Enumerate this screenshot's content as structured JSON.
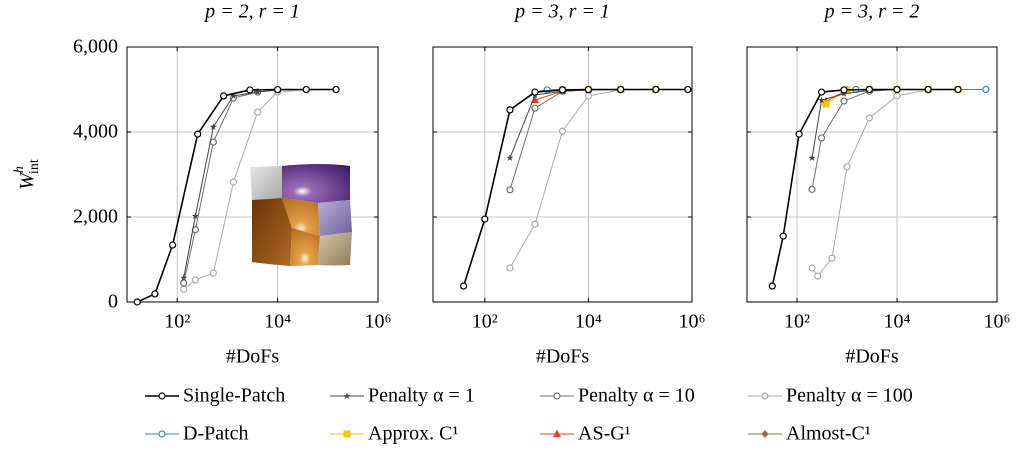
{
  "legend": {
    "entries": [
      {
        "name": "Single-Patch",
        "color": "#000000",
        "marker": "circle"
      },
      {
        "name": "Penalty α = 1",
        "color": "#444444",
        "marker": "star"
      },
      {
        "name": "Penalty α = 10",
        "color": "#6e6e6e",
        "marker": "circle"
      },
      {
        "name": "Penalty α = 100",
        "color": "#ababab",
        "marker": "circle"
      },
      {
        "name": "D-Patch",
        "color": "#2b8cbe",
        "marker": "circle"
      },
      {
        "name": "Approx. C¹",
        "color": "#f7c600",
        "marker": "square"
      },
      {
        "name": "AS-G¹",
        "color": "#e8401c",
        "marker": "triangle"
      },
      {
        "name": "Almost-C¹",
        "color": "#9c6b3c",
        "marker": "diamond"
      }
    ]
  },
  "chart_data": [
    {
      "type": "line",
      "title": "p = 2, r = 1",
      "x_label": "#DoFs",
      "y_label": {
        "text": "W",
        "sup": "h",
        "sub": "int"
      },
      "log_x": true,
      "grid": true,
      "ytick_labels": true,
      "xlim": [
        10,
        1000000
      ],
      "ylim": [
        0,
        6000
      ],
      "xticks": [
        {
          "value": 100,
          "label": "10²"
        },
        {
          "value": 10000,
          "label": "10⁴"
        },
        {
          "value": 1000000,
          "label": "10⁶"
        }
      ],
      "yticks": [
        0,
        {
          "value": 2000,
          "label": "2,000"
        },
        {
          "value": 4000,
          "label": "4,000"
        },
        {
          "value": 6000,
          "label": "6,000"
        }
      ],
      "series": [
        {
          "name": "Single-Patch",
          "x": [
            16,
            36,
            81,
            256,
            841,
            2809,
            10000,
            37249,
            145924
          ],
          "values": [
            0,
            190,
            1340,
            3950,
            4850,
            4990,
            5000,
            5000,
            5000
          ]
        },
        {
          "name": "Penalty α = 1",
          "x": [
            135,
            230,
            525,
            1320,
            4000,
            10000,
            37249,
            145924
          ],
          "values": [
            565,
            2020,
            4120,
            4850,
            4940,
            4990,
            5000,
            5000
          ]
        },
        {
          "name": "Penalty α = 10",
          "x": [
            135,
            230,
            525,
            1320,
            4000,
            10000,
            37249,
            145924
          ],
          "values": [
            447,
            1700,
            3760,
            4800,
            4940,
            4990,
            5000,
            5000
          ]
        },
        {
          "name": "Penalty α = 100",
          "x": [
            135,
            230,
            525,
            1320,
            4000,
            10000,
            37249,
            145924
          ],
          "values": [
            300,
            520,
            680,
            2820,
            4470,
            4940,
            4990,
            5000
          ]
        }
      ]
    },
    {
      "type": "line",
      "title": "p = 3, r = 1",
      "x_label": "#DoFs",
      "log_x": true,
      "grid": true,
      "ytick_labels": false,
      "xlim": [
        10,
        1000000
      ],
      "ylim": [
        0,
        6000
      ],
      "xticks": [
        {
          "value": 100,
          "label": "10²"
        },
        {
          "value": 10000,
          "label": "10⁴"
        },
        {
          "value": 1000000,
          "label": "10⁶"
        }
      ],
      "yticks": [
        0,
        2000,
        4000,
        6000
      ],
      "series": [
        {
          "name": "Single-Patch",
          "x": [
            39,
            100,
            306,
            930,
            3160,
            10000,
            42000,
            200000,
            830000
          ],
          "values": [
            376,
            1950,
            4520,
            4940,
            4990,
            5000,
            5000,
            5000,
            5000
          ]
        },
        {
          "name": "Penalty α = 1",
          "x": [
            306,
            930,
            3160,
            10000,
            42000,
            200000,
            830000
          ],
          "values": [
            3390,
            4870,
            4960,
            4990,
            5000,
            5000,
            5000
          ]
        },
        {
          "name": "Penalty α = 10",
          "x": [
            306,
            930,
            3160,
            10000,
            42000,
            200000,
            830000
          ],
          "values": [
            2640,
            4560,
            4960,
            4990,
            5000,
            5000,
            5000
          ]
        },
        {
          "name": "Penalty α = 100",
          "x": [
            306,
            930,
            3160,
            10000,
            42000,
            200000,
            830000
          ],
          "values": [
            800,
            1830,
            4020,
            4850,
            4990,
            5000,
            5000
          ]
        },
        {
          "name": "D-Patch",
          "x": [
            930,
            1600,
            3160,
            10000,
            42000,
            200000,
            830000
          ],
          "values": [
            4940,
            4990,
            5000,
            5000,
            5000,
            5000,
            5000
          ]
        },
        {
          "name": "Approx. C¹",
          "x": [
            3160,
            10000,
            42000,
            200000
          ],
          "values": [
            4990,
            5000,
            5000,
            5000
          ]
        },
        {
          "name": "AS-G¹",
          "x": [
            930,
            3160,
            10000,
            42000,
            200000
          ],
          "values": [
            4750,
            4960,
            5000,
            5000,
            5000
          ]
        },
        {
          "name": "Almost-C¹",
          "x": [
            1600,
            3160,
            10000,
            42000,
            200000
          ],
          "values": [
            4980,
            5000,
            5000,
            5000,
            5000
          ]
        }
      ]
    },
    {
      "type": "line",
      "title": "p = 3, r = 2",
      "x_label": "#DoFs",
      "log_x": true,
      "grid": true,
      "ytick_labels": false,
      "xlim": [
        10,
        1000000
      ],
      "ylim": [
        0,
        6000
      ],
      "xticks": [
        {
          "value": 100,
          "label": "10²"
        },
        {
          "value": 10000,
          "label": "10⁴"
        },
        {
          "value": 1000000,
          "label": "10⁶"
        }
      ],
      "yticks": [
        0,
        2000,
        4000,
        6000
      ],
      "series": [
        {
          "name": "Single-Patch",
          "x": [
            32,
            53,
            110,
            310,
            870,
            2800,
            10000,
            42000,
            166000
          ],
          "values": [
            376,
            1550,
            3950,
            4940,
            4990,
            5000,
            5000,
            5000,
            5000
          ]
        },
        {
          "name": "Penalty α = 1",
          "x": [
            200,
            310,
            870,
            2800,
            10000,
            42000,
            166000
          ],
          "values": [
            3390,
            4750,
            4900,
            4980,
            5000,
            5000,
            5000
          ]
        },
        {
          "name": "Penalty α = 10",
          "x": [
            200,
            310,
            870,
            2800,
            10000,
            42000,
            166000
          ],
          "values": [
            2650,
            3860,
            4730,
            4960,
            5000,
            5000,
            5000
          ]
        },
        {
          "name": "Penalty α = 100",
          "x": [
            200,
            260,
            500,
            1000,
            2800,
            10000,
            42000,
            166000
          ],
          "values": [
            800,
            610,
            1030,
            3180,
            4330,
            4850,
            4990,
            5000
          ]
        },
        {
          "name": "D-Patch",
          "x": [
            870,
            1500,
            2800,
            10000,
            42000,
            166000,
            600000
          ],
          "values": [
            4990,
            5000,
            5000,
            5000,
            5000,
            5000,
            5000
          ]
        },
        {
          "name": "Approx. C¹",
          "x": [
            380,
            1000,
            2800,
            10000,
            42000,
            166000
          ],
          "values": [
            4660,
            4980,
            5000,
            5000,
            5000,
            5000
          ]
        },
        {
          "name": "AS-G¹",
          "x": [
            380,
            1000,
            2800,
            10000
          ],
          "values": [
            4720,
            4990,
            5000,
            5000
          ]
        },
        {
          "name": "Almost-C¹",
          "x": [
            1000,
            2800,
            10000,
            42000,
            166000
          ],
          "values": [
            4990,
            5000,
            5000,
            5000,
            5000
          ]
        }
      ]
    }
  ]
}
